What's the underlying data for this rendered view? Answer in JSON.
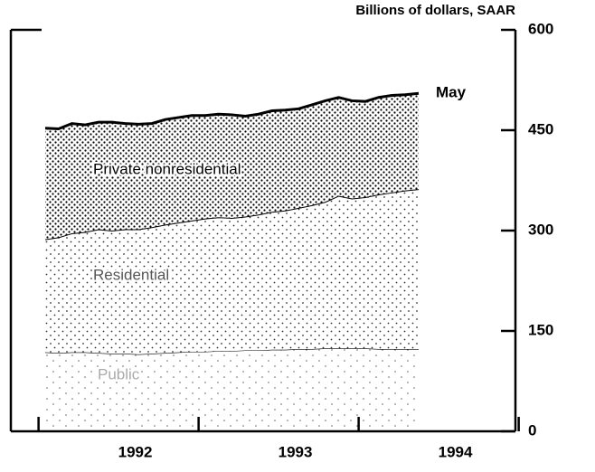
{
  "chart_data": {
    "type": "stacked_area",
    "subtitle": "Billions of dollars, SAAR",
    "categories": [
      null,
      null,
      null,
      null,
      null,
      null,
      null,
      null,
      null,
      null,
      null,
      null,
      null,
      null,
      null,
      null,
      null,
      null,
      null,
      null,
      null,
      null,
      null,
      null,
      null,
      null,
      null,
      null,
      null
    ],
    "year_labels": [
      "1992",
      "1993",
      "1994"
    ],
    "end_annotation": "May",
    "series": [
      {
        "name": "Public",
        "color": "#000000",
        "pattern": "sparse",
        "values": [
          118,
          117,
          118,
          118,
          117,
          116,
          116,
          115,
          116,
          117,
          118,
          119,
          119,
          120,
          120,
          121,
          121,
          122,
          122,
          123,
          123,
          124,
          124,
          124,
          124,
          123,
          123,
          123,
          123
        ]
      },
      {
        "name": "Residential",
        "color": "#000000",
        "pattern": "medium",
        "values": [
          169,
          173,
          178,
          180,
          185,
          184,
          186,
          187,
          189,
          192,
          194,
          196,
          199,
          200,
          199,
          200,
          203,
          206,
          208,
          211,
          215,
          219,
          228,
          224,
          226,
          231,
          234,
          237,
          239
        ]
      },
      {
        "name": "Private nonresidential",
        "color": "#000000",
        "pattern": "dense",
        "values": [
          166,
          162,
          164,
          160,
          160,
          162,
          158,
          157,
          155,
          157,
          157,
          157,
          154,
          154,
          154,
          150,
          150,
          151,
          150,
          148,
          150,
          151,
          147,
          146,
          143,
          145,
          145,
          143,
          143
        ]
      }
    ],
    "ylim": [
      0,
      600
    ],
    "yticks": [
      0,
      150,
      300,
      450,
      600
    ]
  }
}
